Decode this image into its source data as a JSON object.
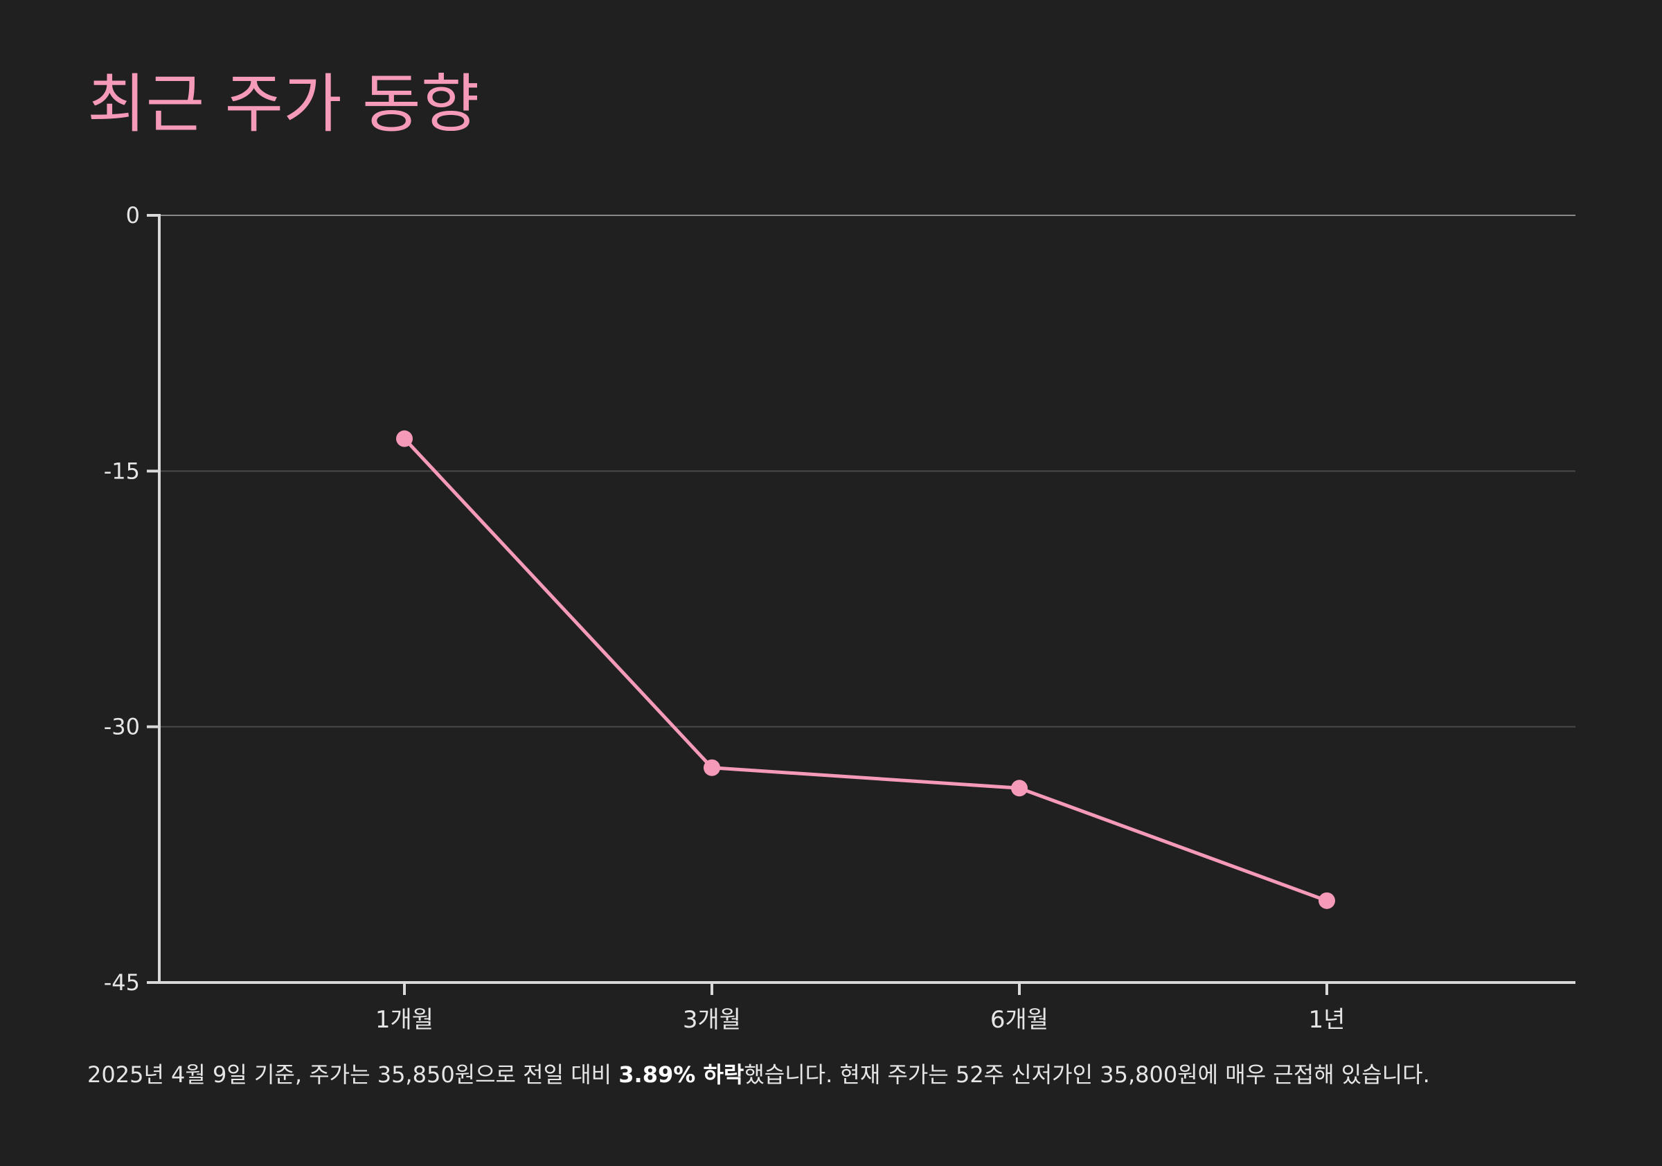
{
  "title": "최근 주가 동향",
  "footnote": {
    "before": "2025년 4월 9일 기준, 주가는 35,850원으로 전일 대비 ",
    "highlight": "3.89% 하락",
    "after": "했습니다. 현재 주가는 52주 신저가인 35,800원에 매우 근접해 있습니다."
  },
  "colors": {
    "background": "#202020",
    "accent": "#f59ab8",
    "axis": "#d9d9d9",
    "grid": "#4a4a4a",
    "text": "#e6e6e6"
  },
  "chart_data": {
    "type": "line",
    "categories": [
      "1개월",
      "3개월",
      "6개월",
      "1년"
    ],
    "values": [
      -13.1,
      -32.4,
      -33.6,
      -40.2
    ],
    "title": "",
    "xlabel": "",
    "ylabel": "",
    "ylim": [
      -45,
      0
    ],
    "yticks": [
      0,
      -15,
      -30,
      -45
    ],
    "ytick_labels": [
      "0",
      "-15",
      "-30",
      "-45"
    ],
    "grid": true,
    "legend": "none"
  }
}
